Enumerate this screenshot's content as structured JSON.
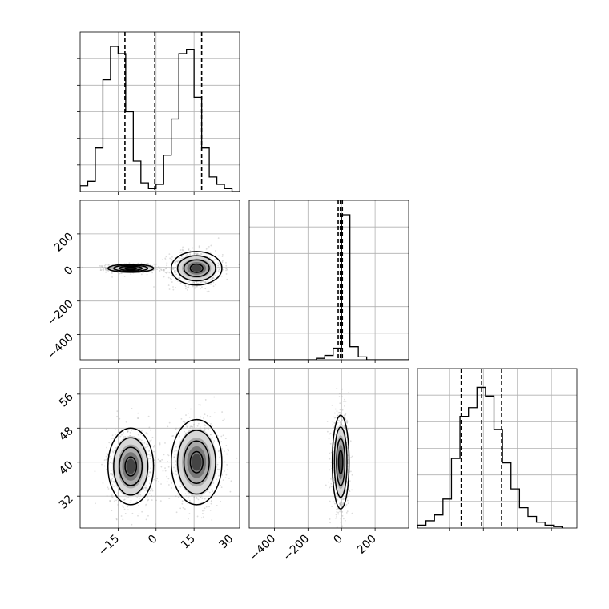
{
  "chart_data": {
    "type": "scatter",
    "subtype": "corner_plot",
    "grid": true,
    "colors": {
      "line": "#000000",
      "grid": "#b0b0b0",
      "points": "#9a9a9a",
      "dense": "#505050",
      "background": "#ffffff"
    },
    "params": [
      {
        "ticks": [
          -15,
          0,
          15,
          30
        ],
        "tick_labels": [
          "−15",
          "0",
          "15",
          "30"
        ],
        "range": [
          -30,
          33
        ]
      },
      {
        "ticks": [
          -400,
          -200,
          0,
          200
        ],
        "tick_labels": [
          "−400",
          "−200",
          "0",
          "200"
        ],
        "range": [
          -550,
          400
        ]
      },
      {
        "ticks": [
          32,
          40,
          48,
          56
        ],
        "tick_labels": [
          "32",
          "40",
          "48",
          "56"
        ],
        "range": [
          24.5,
          62
        ]
      }
    ],
    "marginals": [
      {
        "param": 0,
        "bin_edges": [
          -30,
          -27,
          -24,
          -21,
          -18,
          -15,
          -12,
          -9,
          -6,
          -3,
          0,
          3,
          6,
          9,
          12,
          15,
          18,
          21,
          24,
          27,
          30,
          33
        ],
        "counts": [
          0.04,
          0.07,
          0.3,
          0.77,
          1.0,
          0.95,
          0.55,
          0.21,
          0.06,
          0.02,
          0.05,
          0.25,
          0.5,
          0.95,
          0.98,
          0.65,
          0.3,
          0.1,
          0.05,
          0.02,
          0.0
        ],
        "quantiles": [
          -12.3,
          -0.5,
          18.0
        ]
      },
      {
        "param": 1,
        "bin_edges": [
          -550,
          -500,
          -450,
          -400,
          -350,
          -300,
          -250,
          -200,
          -150,
          -100,
          -50,
          0,
          50,
          100,
          150,
          200,
          250,
          300,
          350,
          400
        ],
        "counts": [
          0.0,
          0.0,
          0.0,
          0.0,
          0.0,
          0.0,
          0.0,
          0.0,
          0.01,
          0.03,
          0.08,
          1.0,
          0.09,
          0.02,
          0.0,
          0.0,
          0.0,
          0.0,
          0.0
        ],
        "quantiles": [
          -20,
          -7,
          5
        ]
      },
      {
        "param": 2,
        "bin_edges": [
          24.5,
          26.5,
          28.5,
          30.5,
          32.5,
          34.5,
          36.5,
          38.5,
          40.5,
          42.5,
          44.5,
          46.5,
          48.5,
          50.5,
          52.5,
          54.5,
          56.5,
          58.5
        ],
        "counts": [
          0.02,
          0.05,
          0.09,
          0.2,
          0.48,
          0.77,
          0.83,
          0.97,
          0.91,
          0.68,
          0.45,
          0.27,
          0.14,
          0.08,
          0.04,
          0.02,
          0.01
        ],
        "quantiles": [
          34.8,
          39.6,
          44.3
        ]
      }
    ],
    "joints": [
      {
        "x_param": 0,
        "y_param": 1,
        "clusters": [
          {
            "center": [
              -10,
              -5
            ],
            "sd": [
              4.5,
              12
            ]
          },
          {
            "center": [
              16,
              -5
            ],
            "sd": [
              5,
              50
            ]
          }
        ]
      },
      {
        "x_param": 0,
        "y_param": 2,
        "clusters": [
          {
            "center": [
              -10,
              39
            ],
            "sd": [
              4.5,
              4.5
            ]
          },
          {
            "center": [
              16,
              40
            ],
            "sd": [
              5,
              5
            ]
          }
        ]
      },
      {
        "x_param": 1,
        "y_param": 2,
        "clusters": [
          {
            "center": [
              -5,
              40
            ],
            "sd": [
              25,
              5.5
            ]
          }
        ]
      }
    ]
  }
}
